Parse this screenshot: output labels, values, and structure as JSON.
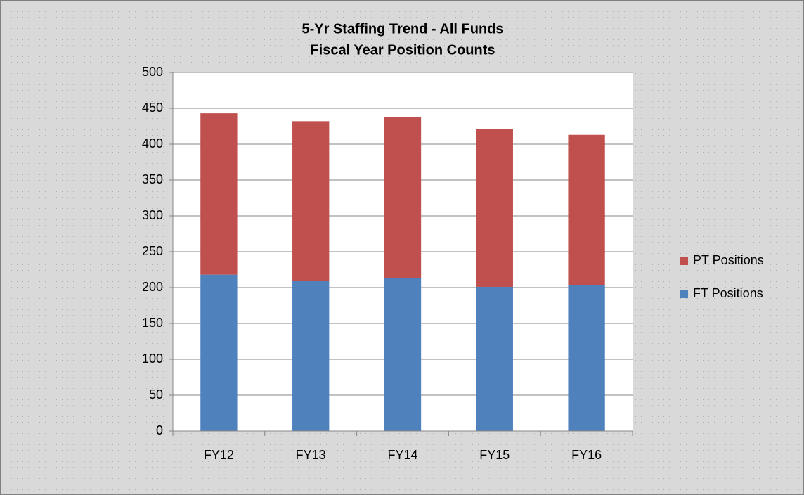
{
  "chart_data": {
    "type": "stacked_bar",
    "title": "5-Yr Staffing Trend - All Funds",
    "subtitle": "Fiscal Year Position Counts",
    "categories": [
      "FY12",
      "FY13",
      "FY14",
      "FY15",
      "FY16"
    ],
    "series": [
      {
        "name": "FT Positions",
        "color": "#4f81bd",
        "values": [
          218,
          209,
          213,
          201,
          203
        ]
      },
      {
        "name": "PT Positions",
        "color": "#c0504d",
        "values": [
          225,
          223,
          225,
          220,
          210
        ]
      }
    ],
    "ylim": [
      0,
      500
    ],
    "yticks": [
      0,
      50,
      100,
      150,
      200,
      250,
      300,
      350,
      400,
      450,
      500
    ],
    "grid": true,
    "legend": "right"
  }
}
